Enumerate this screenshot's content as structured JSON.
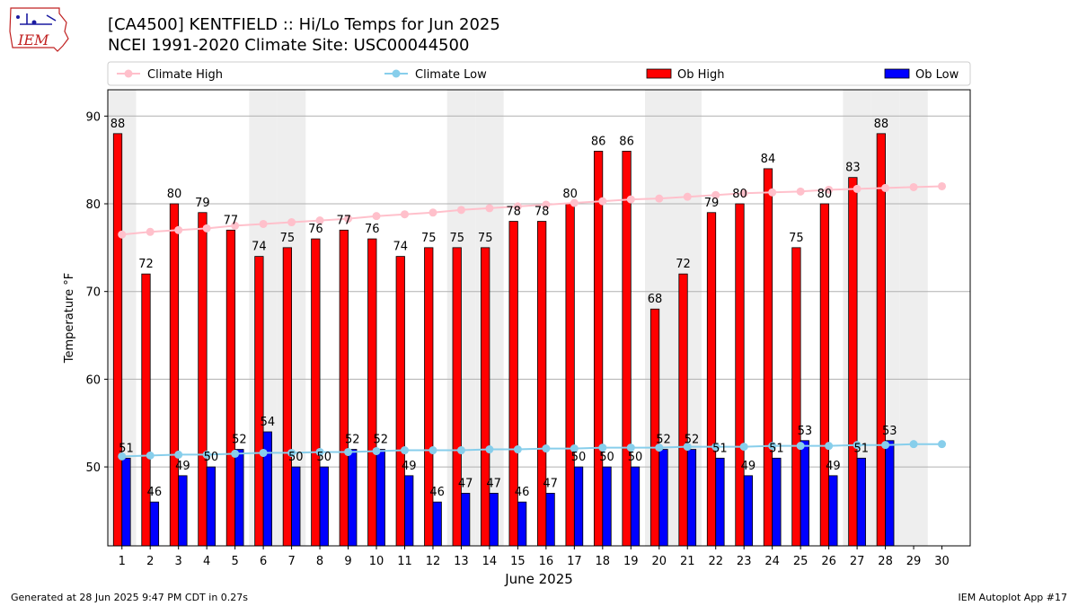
{
  "header": {
    "title_line1": "[CA4500] KENTFIELD :: Hi/Lo Temps for Jun 2025",
    "title_line2": "NCEI 1991-2020 Climate Site: USC00044500",
    "logo_text": "IEM"
  },
  "footer": {
    "left": "Generated at 28 Jun 2025 9:47 PM CDT in 0.27s",
    "right": "IEM Autoplot App #17"
  },
  "colors": {
    "ob_high": "#ff0000",
    "ob_low": "#0000ff",
    "climate_high": "#ffc0cb",
    "climate_low": "#87ceeb",
    "weekend_shade": "#eeeeee",
    "grid": "#b0b0b0"
  },
  "chart_data": {
    "type": "bar",
    "xlabel": "June 2025",
    "ylabel": "Temperature °F",
    "ylim": [
      41,
      93
    ],
    "yticks": [
      50,
      60,
      70,
      80,
      90
    ],
    "grid": "horizontal",
    "legend_position": "top",
    "shaded_days": [
      1,
      6,
      7,
      13,
      14,
      20,
      21,
      27,
      28,
      29
    ],
    "categories": [
      "1",
      "2",
      "3",
      "4",
      "5",
      "6",
      "7",
      "8",
      "9",
      "10",
      "11",
      "12",
      "13",
      "14",
      "15",
      "16",
      "17",
      "18",
      "19",
      "20",
      "21",
      "22",
      "23",
      "24",
      "25",
      "26",
      "27",
      "28",
      "29",
      "30"
    ],
    "series": [
      {
        "name": "Climate High",
        "kind": "line",
        "values": [
          76.5,
          76.8,
          77.0,
          77.2,
          77.5,
          77.7,
          77.9,
          78.1,
          78.3,
          78.6,
          78.8,
          79.0,
          79.3,
          79.5,
          79.7,
          79.9,
          80.1,
          80.3,
          80.5,
          80.6,
          80.8,
          81.0,
          81.2,
          81.3,
          81.4,
          81.6,
          81.7,
          81.8,
          81.9,
          82.0
        ]
      },
      {
        "name": "Climate Low",
        "kind": "line",
        "values": [
          51.2,
          51.3,
          51.4,
          51.4,
          51.5,
          51.6,
          51.6,
          51.7,
          51.7,
          51.8,
          51.9,
          51.9,
          51.9,
          52.0,
          52.0,
          52.1,
          52.1,
          52.2,
          52.2,
          52.2,
          52.3,
          52.3,
          52.3,
          52.4,
          52.4,
          52.4,
          52.5,
          52.5,
          52.6,
          52.6
        ]
      },
      {
        "name": "Ob High",
        "kind": "bar",
        "values": [
          88,
          72,
          80,
          79,
          77,
          74,
          75,
          76,
          77,
          76,
          74,
          75,
          75,
          75,
          78,
          78,
          80,
          86,
          86,
          68,
          72,
          79,
          80,
          84,
          75,
          80,
          83,
          88,
          null,
          null
        ]
      },
      {
        "name": "Ob Low",
        "kind": "bar",
        "values": [
          51,
          46,
          49,
          50,
          52,
          54,
          50,
          50,
          52,
          52,
          49,
          46,
          47,
          47,
          46,
          47,
          50,
          50,
          50,
          52,
          52,
          51,
          49,
          51,
          53,
          49,
          51,
          53,
          null,
          null
        ]
      }
    ]
  }
}
